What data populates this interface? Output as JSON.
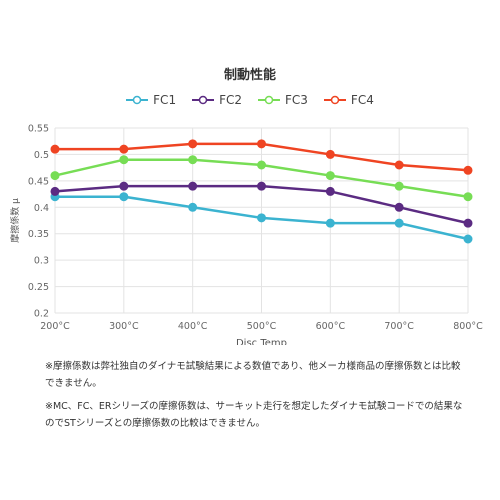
{
  "chart_data": {
    "type": "line",
    "title": "制動性能",
    "xlabel": "Disc Temp",
    "ylabel": "摩擦係数 μ",
    "categories": [
      "200°C",
      "300°C",
      "400°C",
      "500°C",
      "600°C",
      "700°C",
      "800°C"
    ],
    "yticks": [
      "0.2",
      "0.25",
      "0.3",
      "0.35",
      "0.4",
      "0.45",
      "0.5",
      "0.55"
    ],
    "ylim": [
      0.2,
      0.55
    ],
    "grid": true,
    "legend_position": "top",
    "series": [
      {
        "name": "FC1",
        "color": "#3bb3d0",
        "values": [
          0.42,
          0.42,
          0.4,
          0.38,
          0.37,
          0.37,
          0.34
        ]
      },
      {
        "name": "FC2",
        "color": "#5b2b82",
        "values": [
          0.43,
          0.44,
          0.44,
          0.44,
          0.43,
          0.4,
          0.37
        ]
      },
      {
        "name": "FC3",
        "color": "#77dd55",
        "values": [
          0.46,
          0.49,
          0.49,
          0.48,
          0.46,
          0.44,
          0.42
        ]
      },
      {
        "name": "FC4",
        "color": "#ef4422",
        "values": [
          0.51,
          0.51,
          0.52,
          0.52,
          0.5,
          0.48,
          0.47
        ]
      }
    ]
  },
  "notes": [
    "※摩擦係数は弊社独自のダイナモ試験結果による数値であり、他メーカ様商品の摩擦係数とは比較できません。",
    "※MC、FC、ERシリーズの摩擦係数は、サーキット走行を想定したダイナモ試験コードでの結果なのでSTシリーズとの摩擦係数の比較はできません。"
  ]
}
